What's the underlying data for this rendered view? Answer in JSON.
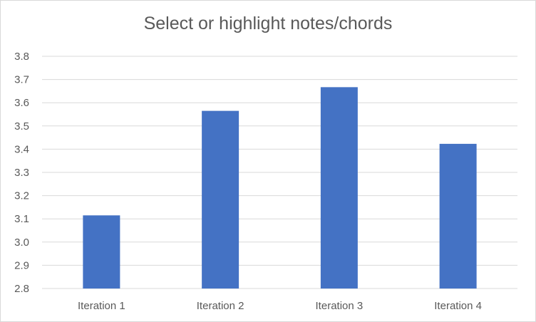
{
  "chart_data": {
    "type": "bar",
    "title": "Select or highlight notes/chords",
    "categories": [
      "Iteration 1",
      "Iteration 2",
      "Iteration 3",
      "Iteration 4"
    ],
    "values": [
      3.115,
      3.565,
      3.667,
      3.423
    ],
    "ylim": [
      2.8,
      3.8
    ],
    "yticks": [
      "2.8",
      "2.9",
      "3.0",
      "3.1",
      "3.2",
      "3.3",
      "3.4",
      "3.5",
      "3.6",
      "3.7",
      "3.8"
    ],
    "xlabel": "",
    "ylabel": "",
    "grid": true,
    "legend": "none",
    "bar_color": "#4472c4",
    "grid_color": "#d9d9d9"
  }
}
